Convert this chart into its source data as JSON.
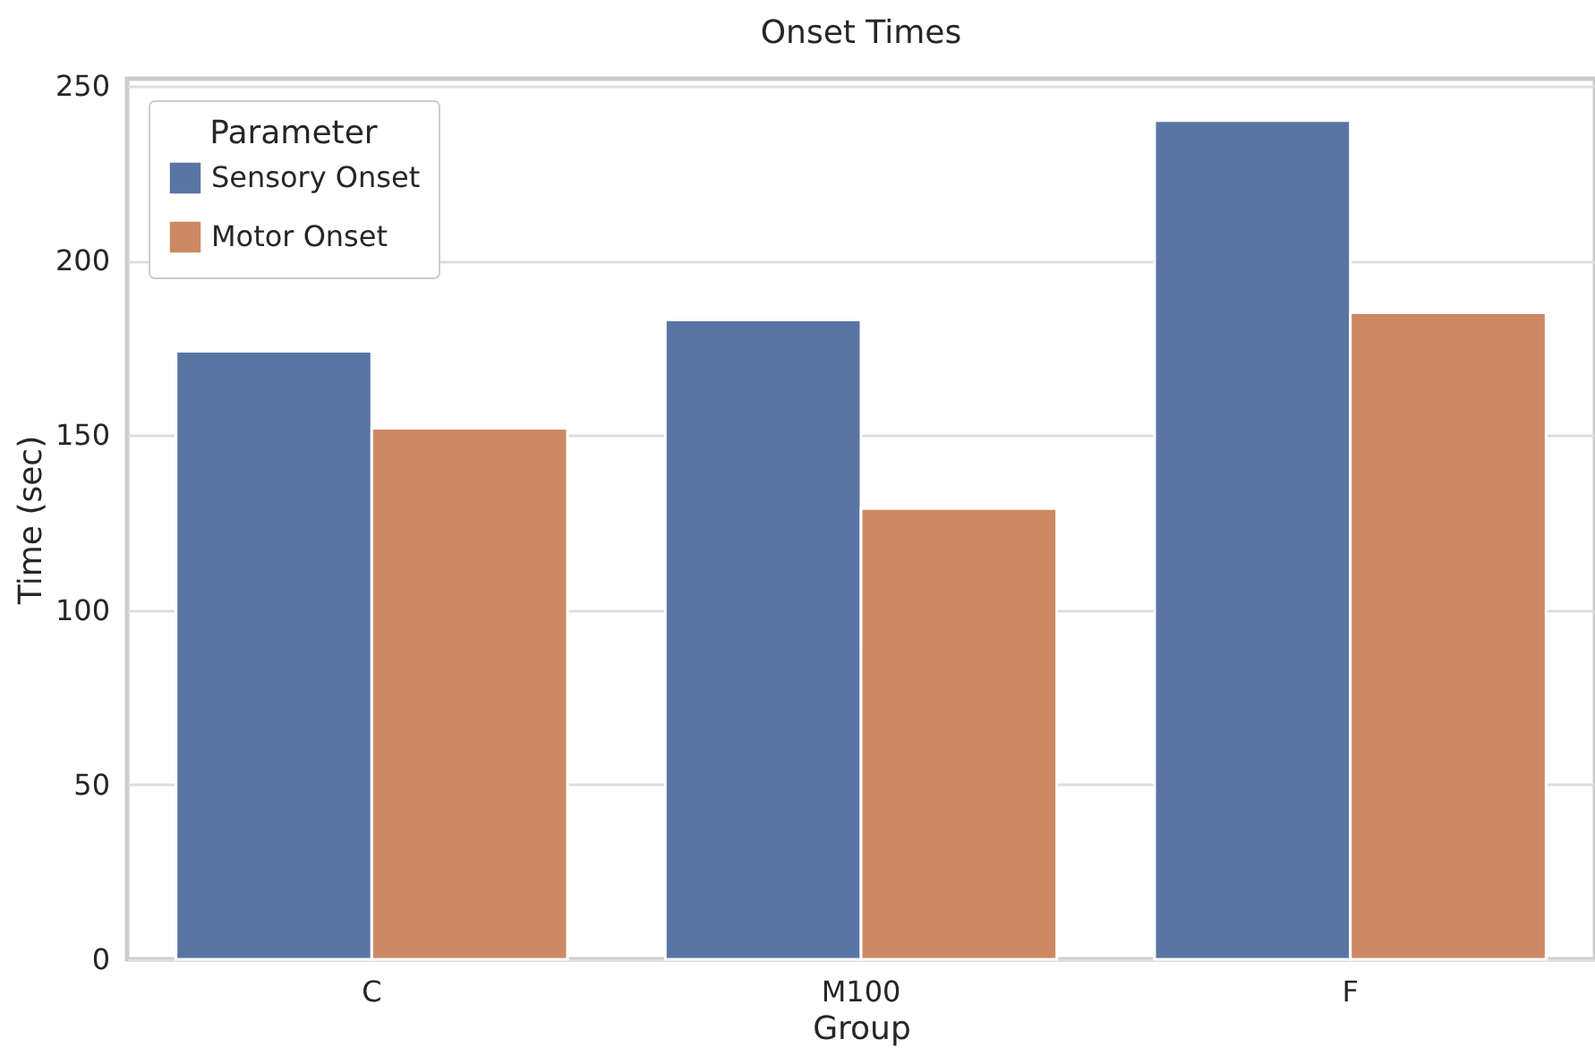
{
  "chart_data": {
    "type": "bar",
    "title": "Onset Times",
    "xlabel": "Group",
    "ylabel": "Time (sec)",
    "legend_title": "Parameter",
    "categories": [
      "C",
      "M100",
      "F"
    ],
    "series": [
      {
        "name": "Sensory Onset",
        "color": "#5975a4",
        "values": [
          174,
          183,
          240
        ]
      },
      {
        "name": "Motor Onset",
        "color": "#cc8963",
        "values": [
          152,
          129,
          185
        ]
      }
    ],
    "ylim": [
      0,
      252
    ],
    "yticks": [
      0,
      50,
      100,
      150,
      200,
      250
    ],
    "grid": "y",
    "legend": "top left"
  }
}
